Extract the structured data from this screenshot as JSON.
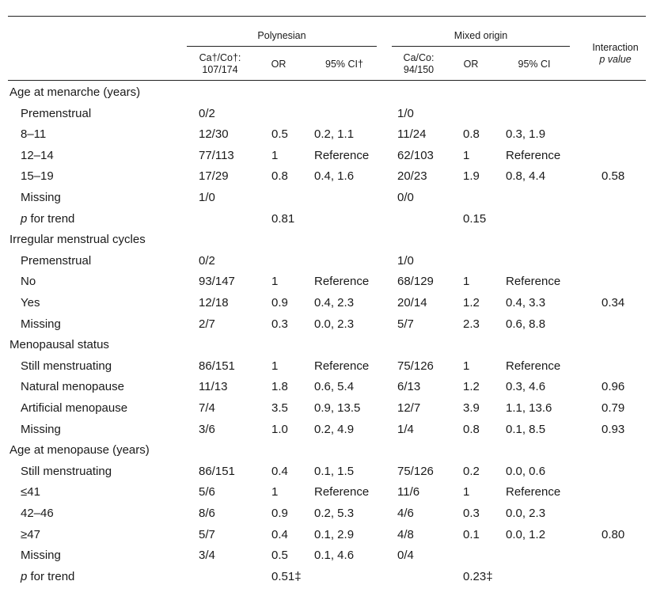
{
  "header": {
    "polynesian": "Polynesian",
    "mixed": "Mixed origin",
    "interaction_line1": "Interaction",
    "interaction_line2": "p value",
    "p_cases_line1": "Ca†/Co†:",
    "p_cases_line2": "107/174",
    "p_or": "OR",
    "p_ci": "95% CI†",
    "m_cases_line1": "Ca/Co:",
    "m_cases_line2": "94/150",
    "m_or": "OR",
    "m_ci": "95% CI"
  },
  "rows": [
    {
      "label": "Age at menarche (years)",
      "indent": false,
      "section": true,
      "cells": [
        "",
        "",
        "",
        "",
        "",
        "",
        ""
      ]
    },
    {
      "label": "Premenstrual",
      "indent": true,
      "cells": [
        "0/2",
        "",
        "",
        "1/0",
        "",
        "",
        ""
      ]
    },
    {
      "label": "8–11",
      "indent": true,
      "cells": [
        "12/30",
        "0.5",
        "0.2, 1.1",
        "11/24",
        "0.8",
        "0.3, 1.9",
        ""
      ]
    },
    {
      "label": "12–14",
      "indent": true,
      "cells": [
        "77/113",
        "1",
        "Reference",
        "62/103",
        "1",
        "Reference",
        ""
      ]
    },
    {
      "label": "15–19",
      "indent": true,
      "cells": [
        "17/29",
        "0.8",
        "0.4, 1.6",
        "20/23",
        "1.9",
        "0.8, 4.4",
        "0.58"
      ]
    },
    {
      "label": "Missing",
      "indent": true,
      "cells": [
        "1/0",
        "",
        "",
        "0/0",
        "",
        "",
        ""
      ]
    },
    {
      "label": "p for trend",
      "indent": true,
      "italic_p": true,
      "cells": [
        "",
        "0.81",
        "",
        "",
        "0.15",
        "",
        ""
      ]
    },
    {
      "label": "Irregular menstrual cycles",
      "indent": false,
      "section": true,
      "cells": [
        "",
        "",
        "",
        "",
        "",
        "",
        ""
      ]
    },
    {
      "label": "Premenstrual",
      "indent": true,
      "cells": [
        "0/2",
        "",
        "",
        "1/0",
        "",
        "",
        ""
      ]
    },
    {
      "label": "No",
      "indent": true,
      "cells": [
        "93/147",
        "1",
        "Reference",
        "68/129",
        "1",
        "Reference",
        ""
      ]
    },
    {
      "label": "Yes",
      "indent": true,
      "cells": [
        "12/18",
        "0.9",
        "0.4, 2.3",
        "20/14",
        "1.2",
        "0.4, 3.3",
        "0.34"
      ]
    },
    {
      "label": "Missing",
      "indent": true,
      "cells": [
        "2/7",
        "0.3",
        "0.0, 2.3",
        "5/7",
        "2.3",
        "0.6, 8.8",
        ""
      ]
    },
    {
      "label": "Menopausal status",
      "indent": false,
      "section": true,
      "cells": [
        "",
        "",
        "",
        "",
        "",
        "",
        ""
      ]
    },
    {
      "label": "Still menstruating",
      "indent": true,
      "cells": [
        "86/151",
        "1",
        "Reference",
        "75/126",
        "1",
        "Reference",
        ""
      ]
    },
    {
      "label": "Natural menopause",
      "indent": true,
      "cells": [
        "11/13",
        "1.8",
        "0.6, 5.4",
        "6/13",
        "1.2",
        "0.3, 4.6",
        "0.96"
      ]
    },
    {
      "label": "Artificial menopause",
      "indent": true,
      "cells": [
        "7/4",
        "3.5",
        "0.9, 13.5",
        "12/7",
        "3.9",
        "1.1, 13.6",
        "0.79"
      ]
    },
    {
      "label": "Missing",
      "indent": true,
      "cells": [
        "3/6",
        "1.0",
        "0.2, 4.9",
        "1/4",
        "0.8",
        "0.1, 8.5",
        "0.93"
      ]
    },
    {
      "label": "Age at menopause (years)",
      "indent": false,
      "section": true,
      "cells": [
        "",
        "",
        "",
        "",
        "",
        "",
        ""
      ]
    },
    {
      "label": "Still menstruating",
      "indent": true,
      "cells": [
        "86/151",
        "0.4",
        "0.1, 1.5",
        "75/126",
        "0.2",
        "0.0, 0.6",
        ""
      ]
    },
    {
      "label": "≤41",
      "indent": true,
      "cells": [
        "5/6",
        "1",
        "Reference",
        "11/6",
        "1",
        "Reference",
        ""
      ]
    },
    {
      "label": "42–46",
      "indent": true,
      "cells": [
        "8/6",
        "0.9",
        "0.2, 5.3",
        "4/6",
        "0.3",
        "0.0, 2.3",
        ""
      ]
    },
    {
      "label": "≥47",
      "indent": true,
      "cells": [
        "5/7",
        "0.4",
        "0.1, 2.9",
        "4/8",
        "0.1",
        "0.0, 1.2",
        "0.80"
      ]
    },
    {
      "label": "Missing",
      "indent": true,
      "cells": [
        "3/4",
        "0.5",
        "0.1, 4.6",
        "0/4",
        "",
        "",
        ""
      ]
    },
    {
      "label": "p for trend",
      "indent": true,
      "italic_p": true,
      "cells": [
        "",
        "0.51‡",
        "",
        "",
        "0.23‡",
        "",
        ""
      ]
    }
  ]
}
